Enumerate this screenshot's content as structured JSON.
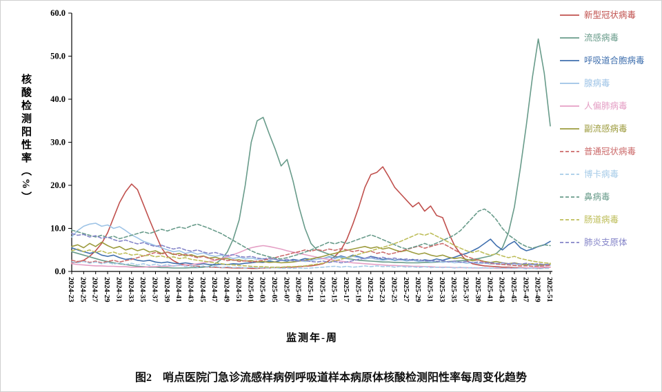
{
  "figure": {
    "caption": "图2　哨点医院门急诊流感样病例呼吸道样本病原体核酸检测阳性率每周变化趋势"
  },
  "chart_data": {
    "type": "line",
    "title": "",
    "xlabel": "监测年-周",
    "ylabel": "核酸检测阳性率（%）",
    "ylim": [
      0,
      60
    ],
    "y_tick_values": [
      0,
      10,
      20,
      30,
      40,
      50,
      60
    ],
    "y_ticks": [
      "0.0",
      "10.0",
      "20.0",
      "30.0",
      "40.0",
      "50.0",
      "60.0"
    ],
    "tick_every": 2,
    "grid": false,
    "legend_position": "right",
    "x": [
      "2024-23",
      "2024-24",
      "2024-25",
      "2024-26",
      "2024-27",
      "2024-28",
      "2024-29",
      "2024-30",
      "2024-31",
      "2024-32",
      "2024-33",
      "2024-34",
      "2024-35",
      "2024-36",
      "2024-37",
      "2024-38",
      "2024-39",
      "2024-40",
      "2024-41",
      "2024-42",
      "2024-43",
      "2024-44",
      "2024-45",
      "2024-46",
      "2024-47",
      "2024-48",
      "2024-49",
      "2024-50",
      "2024-51",
      "2024-52",
      "2025-01",
      "2025-02",
      "2025-03",
      "2025-04",
      "2025-05",
      "2025-06",
      "2025-07",
      "2025-08",
      "2025-09",
      "2025-10",
      "2025-11",
      "2025-12",
      "2025-13",
      "2025-14",
      "2025-15",
      "2025-16",
      "2025-17",
      "2025-18",
      "2025-19",
      "2025-20",
      "2025-21",
      "2025-22",
      "2025-23",
      "2025-24",
      "2025-25",
      "2025-26",
      "2025-27",
      "2025-28",
      "2025-29",
      "2025-30",
      "2025-31",
      "2025-32",
      "2025-33",
      "2025-34",
      "2025-35",
      "2025-36",
      "2025-37",
      "2025-38",
      "2025-39",
      "2025-40",
      "2025-41",
      "2025-42",
      "2025-43",
      "2025-44",
      "2025-45",
      "2025-46",
      "2025-47",
      "2025-48",
      "2025-49",
      "2025-50",
      "2025-51"
    ],
    "series": [
      {
        "name": "新型冠状病毒",
        "color": "#c0504d",
        "dash": "solid",
        "values": [
          2.0,
          2.2,
          2.6,
          3.5,
          4.8,
          6.5,
          9.0,
          12.5,
          16.0,
          18.5,
          20.3,
          19.0,
          15.5,
          12.0,
          8.7,
          5.5,
          3.5,
          2.5,
          1.8,
          1.5,
          1.3,
          1.2,
          1.1,
          1.0,
          1.0,
          0.9,
          0.9,
          0.8,
          0.8,
          0.8,
          0.7,
          0.7,
          0.8,
          0.8,
          0.9,
          0.9,
          1.0,
          1.0,
          1.1,
          1.2,
          1.3,
          1.5,
          1.8,
          2.5,
          3.5,
          5.0,
          7.5,
          11.0,
          15.0,
          19.5,
          22.5,
          23.0,
          24.3,
          22.0,
          19.5,
          18.0,
          16.5,
          15.0,
          16.0,
          14.0,
          15.2,
          13.0,
          12.5,
          9.0,
          6.0,
          4.0,
          2.5,
          1.8,
          1.5,
          1.3,
          1.2,
          1.1,
          1.0,
          1.0,
          0.9,
          0.9,
          0.8,
          0.8,
          0.8,
          0.9,
          1.0
        ]
      },
      {
        "name": "流感病毒",
        "color": "#689b8a",
        "dash": "solid",
        "values": [
          4.6,
          4.2,
          3.8,
          3.4,
          3.0,
          2.6,
          2.3,
          2.0,
          1.8,
          1.6,
          1.4,
          1.2,
          1.1,
          1.0,
          1.0,
          0.9,
          0.9,
          0.8,
          0.8,
          0.8,
          0.9,
          0.9,
          1.0,
          1.2,
          1.8,
          2.8,
          4.5,
          7.5,
          12.0,
          20.0,
          30.0,
          35.0,
          35.8,
          32.0,
          28.5,
          24.5,
          26.0,
          21.0,
          15.0,
          10.0,
          6.5,
          5.0,
          4.5,
          4.0,
          3.5,
          3.2,
          3.0,
          2.8,
          2.6,
          2.5,
          2.4,
          2.3,
          2.2,
          2.2,
          2.1,
          2.1,
          2.0,
          2.0,
          2.0,
          2.1,
          2.1,
          2.2,
          2.2,
          2.3,
          2.4,
          2.5,
          2.6,
          2.8,
          3.0,
          3.3,
          3.6,
          4.2,
          5.5,
          9.0,
          15.0,
          24.0,
          34.0,
          45.0,
          54.0,
          46.0,
          33.8
        ]
      },
      {
        "name": "呼吸道合胞病毒",
        "color": "#3f6fae",
        "dash": "solid",
        "values": [
          5.5,
          5.0,
          4.6,
          4.2,
          4.5,
          3.8,
          3.5,
          3.8,
          3.2,
          2.8,
          3.0,
          2.6,
          2.4,
          2.6,
          2.2,
          2.0,
          2.2,
          1.9,
          1.8,
          2.0,
          1.8,
          1.6,
          1.8,
          1.6,
          1.5,
          1.7,
          1.6,
          1.8,
          1.7,
          1.9,
          2.0,
          2.2,
          2.1,
          2.4,
          2.2,
          2.6,
          2.4,
          2.8,
          2.6,
          3.0,
          2.8,
          3.2,
          3.0,
          3.4,
          3.1,
          3.6,
          3.2,
          3.8,
          3.4,
          3.0,
          3.5,
          3.2,
          2.8,
          3.0,
          2.6,
          2.9,
          2.5,
          2.8,
          2.4,
          2.7,
          2.5,
          2.9,
          2.6,
          3.0,
          3.3,
          3.8,
          4.2,
          4.8,
          5.5,
          6.5,
          7.5,
          6.0,
          5.0,
          6.2,
          7.0,
          5.5,
          4.8,
          5.2,
          5.8,
          6.2,
          7.0
        ]
      },
      {
        "name": "腺病毒",
        "color": "#9dc3e6",
        "dash": "solid",
        "values": [
          8.0,
          9.5,
          10.5,
          11.0,
          11.2,
          10.5,
          10.8,
          10.0,
          10.4,
          9.5,
          8.5,
          7.8,
          7.0,
          6.5,
          6.0,
          5.5,
          5.0,
          4.6,
          4.8,
          4.2,
          4.5,
          4.0,
          4.3,
          3.8,
          3.5,
          3.8,
          3.4,
          3.0,
          3.3,
          2.9,
          3.1,
          2.8,
          3.0,
          2.6,
          2.9,
          2.5,
          2.8,
          2.4,
          2.6,
          2.3,
          2.5,
          2.8,
          3.0,
          3.3,
          3.0,
          3.4,
          3.1,
          3.5,
          3.2,
          2.9,
          3.1,
          2.8,
          2.6,
          2.8,
          2.5,
          2.7,
          2.4,
          2.6,
          2.3,
          2.5,
          2.2,
          2.4,
          2.1,
          2.3,
          2.0,
          2.2,
          1.9,
          2.1,
          1.8,
          2.0,
          1.7,
          1.9,
          1.6,
          1.8,
          1.5,
          1.7,
          1.4,
          1.6,
          1.3,
          1.5,
          1.4
        ]
      },
      {
        "name": "人偏肺病毒",
        "color": "#e49ec4",
        "dash": "solid",
        "values": [
          1.8,
          1.6,
          1.5,
          1.4,
          1.3,
          1.3,
          1.2,
          1.2,
          1.1,
          1.1,
          1.0,
          1.0,
          1.0,
          1.1,
          1.1,
          1.2,
          1.2,
          1.3,
          1.4,
          1.5,
          1.6,
          1.8,
          2.0,
          2.3,
          2.6,
          3.0,
          3.4,
          3.9,
          4.4,
          5.0,
          5.5,
          5.8,
          6.0,
          5.8,
          5.5,
          5.2,
          4.8,
          4.5,
          4.2,
          3.9,
          3.6,
          3.3,
          3.0,
          2.8,
          2.6,
          2.4,
          2.2,
          2.0,
          1.9,
          1.8,
          1.7,
          1.6,
          1.5,
          1.4,
          1.4,
          1.3,
          1.3,
          1.2,
          1.2,
          1.1,
          1.1,
          1.0,
          1.0,
          1.0,
          0.9,
          0.9,
          0.9,
          0.8,
          0.8,
          0.8,
          0.8,
          0.7,
          0.7,
          0.7,
          0.7,
          0.8,
          0.8,
          0.9,
          0.9,
          1.0,
          1.0
        ]
      },
      {
        "name": "副流感病毒",
        "color": "#9c9b3d",
        "dash": "solid",
        "values": [
          5.8,
          6.2,
          5.5,
          6.5,
          5.8,
          6.8,
          6.0,
          5.4,
          5.8,
          5.0,
          5.4,
          4.8,
          5.2,
          4.5,
          4.8,
          4.2,
          4.5,
          3.9,
          4.2,
          3.6,
          3.9,
          3.4,
          3.6,
          3.1,
          3.3,
          2.9,
          3.0,
          2.6,
          2.7,
          2.4,
          2.5,
          2.2,
          2.3,
          2.1,
          2.2,
          2.0,
          2.1,
          2.2,
          2.4,
          2.6,
          2.9,
          3.2,
          3.5,
          3.9,
          4.2,
          4.6,
          4.9,
          5.2,
          5.5,
          5.8,
          5.4,
          5.7,
          5.2,
          5.5,
          5.0,
          4.6,
          4.9,
          4.4,
          4.0,
          4.3,
          3.8,
          3.5,
          3.8,
          3.3,
          3.0,
          3.2,
          2.8,
          2.5,
          2.7,
          2.3,
          2.1,
          2.3,
          2.0,
          1.8,
          2.0,
          1.7,
          1.6,
          1.8,
          1.5,
          1.6,
          1.7
        ]
      },
      {
        "name": "普通冠状病毒",
        "color": "#cb6a6a",
        "dash": "dashed",
        "values": [
          2.6,
          2.3,
          2.5,
          2.1,
          2.4,
          2.0,
          2.3,
          2.6,
          2.2,
          2.5,
          2.8,
          3.2,
          3.6,
          4.0,
          4.4,
          4.0,
          4.5,
          4.1,
          3.7,
          4.0,
          3.6,
          3.2,
          3.5,
          3.0,
          2.7,
          2.9,
          2.5,
          2.7,
          2.3,
          2.5,
          2.2,
          2.4,
          2.6,
          2.9,
          3.2,
          3.6,
          3.9,
          4.3,
          4.6,
          5.0,
          4.7,
          5.1,
          4.8,
          5.2,
          4.9,
          5.3,
          5.0,
          4.6,
          4.9,
          4.4,
          4.7,
          4.2,
          4.5,
          4.0,
          4.3,
          4.7,
          5.1,
          5.5,
          5.9,
          5.4,
          5.8,
          6.2,
          6.5,
          5.8,
          5.0,
          4.2,
          3.5,
          3.0,
          2.6,
          2.2,
          1.9,
          1.7,
          1.6,
          1.5,
          1.4,
          1.3,
          1.3,
          1.2,
          1.2,
          1.3,
          1.4
        ]
      },
      {
        "name": "博卡病毒",
        "color": "#a6cbe8",
        "dash": "dashed",
        "values": [
          2.2,
          2.0,
          2.3,
          1.9,
          2.2,
          1.8,
          2.1,
          1.7,
          2.0,
          1.6,
          1.9,
          1.5,
          1.8,
          1.4,
          1.7,
          1.3,
          1.6,
          1.2,
          1.5,
          1.1,
          1.4,
          1.0,
          1.3,
          1.0,
          1.2,
          0.9,
          1.1,
          0.9,
          1.0,
          0.8,
          1.0,
          0.8,
          0.9,
          0.8,
          0.9,
          0.7,
          0.8,
          0.7,
          0.8,
          0.7,
          0.8,
          0.9,
          1.0,
          1.1,
          1.2,
          1.0,
          1.2,
          1.0,
          1.1,
          1.3,
          1.1,
          1.3,
          1.1,
          1.2,
          1.0,
          1.2,
          1.0,
          1.1,
          0.9,
          1.1,
          0.9,
          1.0,
          0.9,
          1.0,
          0.8,
          1.0,
          0.8,
          0.9,
          0.8,
          0.9,
          0.7,
          0.9,
          0.7,
          0.8,
          0.7,
          0.8,
          0.6,
          0.8,
          0.6,
          0.7,
          0.7
        ]
      },
      {
        "name": "鼻病毒",
        "color": "#689b8a",
        "dash": "dashed",
        "values": [
          9.6,
          9.2,
          8.8,
          8.4,
          8.0,
          8.4,
          7.8,
          8.2,
          7.6,
          8.0,
          8.4,
          8.8,
          9.2,
          8.8,
          9.3,
          9.8,
          9.4,
          9.9,
          10.3,
          10.0,
          10.6,
          11.0,
          10.5,
          10.0,
          9.4,
          8.8,
          8.0,
          7.2,
          6.4,
          5.6,
          4.8,
          4.2,
          3.8,
          3.4,
          3.1,
          2.9,
          3.2,
          3.6,
          4.0,
          4.5,
          5.0,
          5.6,
          6.2,
          6.8,
          6.4,
          6.9,
          6.5,
          7.0,
          7.5,
          8.0,
          8.5,
          8.0,
          7.4,
          6.8,
          6.2,
          5.6,
          5.2,
          5.6,
          6.0,
          6.5,
          6.0,
          6.6,
          7.2,
          7.8,
          8.5,
          9.5,
          11.0,
          12.5,
          14.0,
          14.5,
          13.5,
          12.0,
          10.0,
          8.5,
          7.5,
          6.5,
          5.8,
          5.4,
          5.8,
          6.2,
          6.0
        ]
      },
      {
        "name": "肠道病毒",
        "color": "#bdbd58",
        "dash": "dashed",
        "values": [
          4.8,
          5.2,
          4.6,
          5.0,
          4.4,
          4.8,
          4.2,
          4.5,
          4.0,
          4.3,
          3.8,
          4.0,
          3.6,
          3.8,
          3.4,
          3.6,
          3.2,
          3.4,
          3.0,
          3.2,
          2.8,
          2.6,
          2.4,
          2.2,
          2.0,
          1.8,
          1.6,
          1.5,
          1.4,
          1.3,
          1.2,
          1.1,
          1.1,
          1.0,
          1.0,
          1.0,
          1.1,
          1.1,
          1.2,
          1.3,
          1.5,
          1.7,
          1.9,
          2.2,
          2.5,
          2.8,
          3.2,
          3.6,
          4.0,
          4.4,
          4.8,
          5.2,
          5.6,
          6.0,
          6.5,
          7.0,
          7.6,
          8.2,
          8.8,
          8.4,
          8.9,
          8.2,
          7.5,
          6.8,
          6.0,
          5.4,
          4.8,
          4.4,
          4.8,
          4.2,
          3.8,
          4.1,
          3.6,
          3.2,
          3.5,
          3.0,
          2.7,
          2.4,
          2.2,
          2.0,
          1.9
        ]
      },
      {
        "name": "肺炎支原体",
        "color": "#8484c8",
        "dash": "dashed",
        "values": [
          8.8,
          8.4,
          8.6,
          8.0,
          8.3,
          7.7,
          8.0,
          7.4,
          7.0,
          7.3,
          6.8,
          6.4,
          6.7,
          6.2,
          5.8,
          6.1,
          5.6,
          5.2,
          5.5,
          5.0,
          4.7,
          5.0,
          4.5,
          4.2,
          4.4,
          4.0,
          3.7,
          3.9,
          3.5,
          3.3,
          3.5,
          3.1,
          2.9,
          3.1,
          2.8,
          2.6,
          2.8,
          2.5,
          2.4,
          2.6,
          2.3,
          2.2,
          2.4,
          2.1,
          2.3,
          2.0,
          2.2,
          2.5,
          2.8,
          3.1,
          3.4,
          3.0,
          3.3,
          2.9,
          3.1,
          2.7,
          2.9,
          2.6,
          2.8,
          2.4,
          2.6,
          2.3,
          2.5,
          2.2,
          2.4,
          2.1,
          2.3,
          2.0,
          2.2,
          1.9,
          2.1,
          1.8,
          2.0,
          1.8,
          1.9,
          1.7,
          1.9,
          1.6,
          1.8,
          1.6,
          1.7
        ]
      }
    ]
  }
}
